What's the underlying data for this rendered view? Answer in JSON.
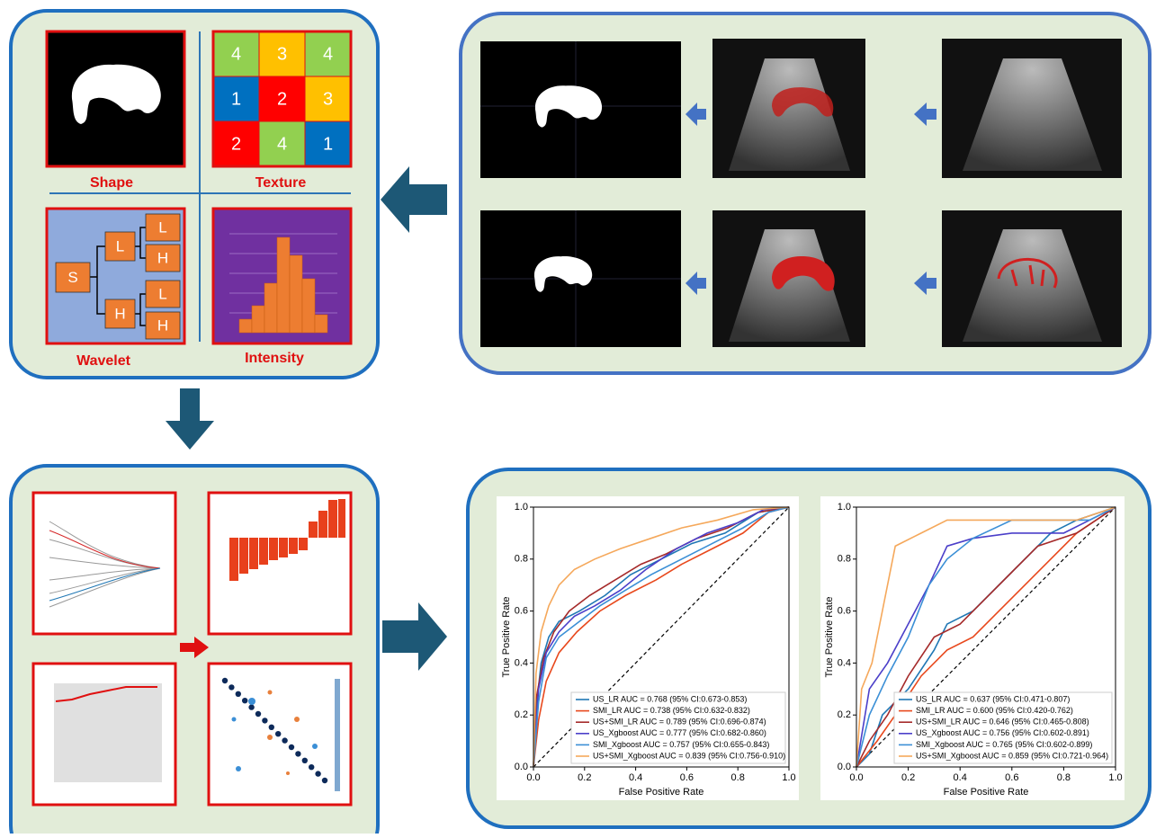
{
  "features": {
    "shape": {
      "label": "Shape"
    },
    "texture": {
      "label": "Texture",
      "cells": [
        {
          "label": "4",
          "color": "#92d050"
        },
        {
          "label": "3",
          "color": "#ffc000"
        },
        {
          "label": "4",
          "color": "#92d050"
        },
        {
          "label": "1",
          "color": "#0070c0"
        },
        {
          "label": "2",
          "color": "#ff0000"
        },
        {
          "label": "3",
          "color": "#ffc000"
        },
        {
          "label": "2",
          "color": "#ff0000"
        },
        {
          "label": "4",
          "color": "#92d050"
        },
        {
          "label": "1",
          "color": "#0070c0"
        }
      ]
    },
    "wavelet": {
      "label": "Wavelet",
      "nodes": [
        "S",
        "L",
        "H",
        "L",
        "H",
        "L",
        "H"
      ]
    },
    "intensity": {
      "label": "Intensity"
    }
  },
  "roc_charts": [
    {
      "xlabel": "False Positive Rate",
      "ylabel": "True Positive Rate",
      "xlim": [
        0,
        1
      ],
      "ylim": [
        0,
        1
      ],
      "xticks": [
        {
          "value": 0,
          "label": "0.0"
        },
        0.2,
        0.4,
        0.6,
        0.8,
        {
          "value": 1,
          "label": "1.0"
        }
      ],
      "yticks": [
        {
          "value": 0,
          "label": "0.0"
        },
        0.2,
        0.4,
        0.6,
        0.8,
        {
          "value": 1,
          "label": "1.0"
        }
      ],
      "series": [
        {
          "name": "US_LR  AUC = 0.768 (95% CI:0.673-0.853)",
          "color": "#1f77b4",
          "x": [
            0,
            0.01,
            0.03,
            0.06,
            0.1,
            0.18,
            0.28,
            0.38,
            0.5,
            0.62,
            0.75,
            0.88,
            1
          ],
          "y": [
            0,
            0.22,
            0.4,
            0.5,
            0.56,
            0.6,
            0.66,
            0.74,
            0.8,
            0.86,
            0.9,
            0.98,
            1
          ]
        },
        {
          "name": "SMI_LR  AUC = 0.738 (95% CI:0.632-0.832)",
          "color": "#e8481c",
          "x": [
            0,
            0.02,
            0.05,
            0.1,
            0.17,
            0.26,
            0.36,
            0.48,
            0.58,
            0.7,
            0.82,
            0.92,
            1
          ],
          "y": [
            0,
            0.18,
            0.33,
            0.44,
            0.52,
            0.6,
            0.66,
            0.72,
            0.78,
            0.84,
            0.9,
            0.98,
            1
          ]
        },
        {
          "name": "US+SMI_LR  AUC = 0.789 (95% CI:0.696-0.874)",
          "color": "#a52a2a",
          "x": [
            0,
            0.01,
            0.04,
            0.08,
            0.14,
            0.22,
            0.32,
            0.42,
            0.52,
            0.64,
            0.76,
            0.88,
            1
          ],
          "y": [
            0,
            0.26,
            0.42,
            0.52,
            0.6,
            0.66,
            0.72,
            0.78,
            0.82,
            0.88,
            0.92,
            0.98,
            1
          ]
        },
        {
          "name": "US_Xgboost  AUC = 0.777 (95% CI:0.682-0.860)",
          "color": "#4b3fc9",
          "x": [
            0,
            0.02,
            0.05,
            0.1,
            0.16,
            0.24,
            0.34,
            0.44,
            0.56,
            0.68,
            0.8,
            0.9,
            1
          ],
          "y": [
            0,
            0.3,
            0.44,
            0.52,
            0.58,
            0.62,
            0.68,
            0.76,
            0.84,
            0.9,
            0.94,
            0.99,
            1
          ]
        },
        {
          "name": "SMI_Xgboost  AUC = 0.757 (95% CI:0.655-0.843)",
          "color": "#3b8fd6",
          "x": [
            0,
            0.02,
            0.05,
            0.1,
            0.18,
            0.26,
            0.36,
            0.46,
            0.58,
            0.7,
            0.82,
            0.92,
            1
          ],
          "y": [
            0,
            0.25,
            0.42,
            0.5,
            0.56,
            0.62,
            0.68,
            0.74,
            0.8,
            0.86,
            0.92,
            0.98,
            1
          ]
        },
        {
          "name": "US+SMI_Xgboost  AUC = 0.839 (95% CI:0.756-0.910)",
          "color": "#f5a85b",
          "x": [
            0,
            0.01,
            0.03,
            0.06,
            0.1,
            0.16,
            0.24,
            0.34,
            0.46,
            0.58,
            0.72,
            0.86,
            1
          ],
          "y": [
            0,
            0.36,
            0.52,
            0.62,
            0.7,
            0.76,
            0.8,
            0.84,
            0.88,
            0.92,
            0.95,
            0.99,
            1
          ]
        }
      ]
    },
    {
      "xlabel": "False Positive Rate",
      "ylabel": "True Positive Rate",
      "xlim": [
        0,
        1
      ],
      "ylim": [
        0,
        1
      ],
      "xticks": [
        {
          "value": 0,
          "label": "0.0"
        },
        0.2,
        0.4,
        0.6,
        0.8,
        {
          "value": 1,
          "label": "1.0"
        }
      ],
      "yticks": [
        {
          "value": 0,
          "label": "0.0"
        },
        0.2,
        0.4,
        0.6,
        0.8,
        {
          "value": 1,
          "label": "1.0"
        }
      ],
      "series": [
        {
          "name": "US_LR  AUC = 0.637 (95% CI:0.471-0.807)",
          "color": "#1f77b4",
          "x": [
            0,
            0.05,
            0.1,
            0.2,
            0.3,
            0.35,
            0.45,
            0.6,
            0.75,
            0.85,
            1
          ],
          "y": [
            0,
            0.05,
            0.2,
            0.3,
            0.45,
            0.55,
            0.6,
            0.75,
            0.9,
            0.95,
            1
          ]
        },
        {
          "name": "SMI_LR  AUC = 0.600 (95% CI:0.420-0.762)",
          "color": "#e8481c",
          "x": [
            0,
            0.08,
            0.15,
            0.25,
            0.35,
            0.45,
            0.55,
            0.65,
            0.75,
            0.85,
            1
          ],
          "y": [
            0,
            0.1,
            0.2,
            0.35,
            0.45,
            0.5,
            0.6,
            0.7,
            0.8,
            0.9,
            1
          ]
        },
        {
          "name": "US+SMI_LR  AUC = 0.646 (95% CI:0.465-0.808)",
          "color": "#a52a2a",
          "x": [
            0,
            0.05,
            0.12,
            0.2,
            0.3,
            0.4,
            0.5,
            0.6,
            0.7,
            0.85,
            1
          ],
          "y": [
            0,
            0.1,
            0.2,
            0.35,
            0.5,
            0.55,
            0.65,
            0.75,
            0.85,
            0.9,
            1
          ]
        },
        {
          "name": "US_Xgboost  AUC = 0.756 (95% CI:0.602-0.891)",
          "color": "#4b3fc9",
          "x": [
            0,
            0.05,
            0.12,
            0.2,
            0.28,
            0.35,
            0.45,
            0.6,
            0.8,
            0.9,
            1
          ],
          "y": [
            0,
            0.3,
            0.4,
            0.55,
            0.7,
            0.85,
            0.88,
            0.9,
            0.9,
            0.95,
            1
          ]
        },
        {
          "name": "SMI_Xgboost  AUC = 0.765 (95% CI:0.602-0.899)",
          "color": "#3b8fd6",
          "x": [
            0,
            0.05,
            0.12,
            0.2,
            0.28,
            0.35,
            0.45,
            0.6,
            0.75,
            0.9,
            1
          ],
          "y": [
            0,
            0.2,
            0.35,
            0.5,
            0.7,
            0.8,
            0.88,
            0.95,
            0.95,
            0.95,
            1
          ]
        },
        {
          "name": "US+SMI_Xgboost  AUC = 0.859 (95% CI:0.721-0.964)",
          "color": "#f5a85b",
          "x": [
            0,
            0.02,
            0.06,
            0.1,
            0.15,
            0.25,
            0.35,
            0.5,
            0.7,
            0.85,
            1
          ],
          "y": [
            0,
            0.3,
            0.4,
            0.6,
            0.85,
            0.9,
            0.95,
            0.95,
            0.95,
            0.95,
            1
          ]
        }
      ]
    }
  ]
}
